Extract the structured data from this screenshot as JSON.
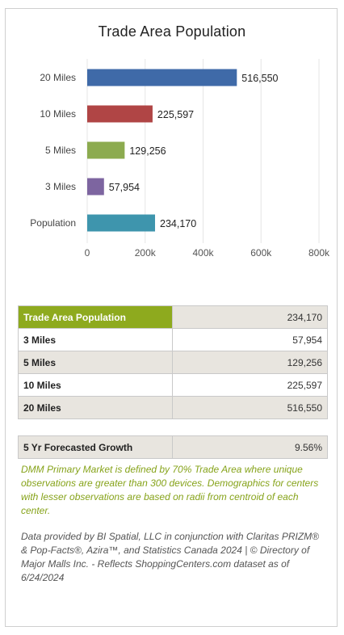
{
  "chart_data": {
    "type": "bar",
    "orientation": "horizontal",
    "title": "Trade Area Population",
    "categories": [
      "20 Miles",
      "10 Miles",
      "5 Miles",
      "3 Miles",
      "Population"
    ],
    "values": [
      516550,
      225597,
      129256,
      57954,
      234170
    ],
    "value_labels": [
      "516,550",
      "225,597",
      "129,256",
      "57,954",
      "234,170"
    ],
    "colors": [
      "#3f6aa8",
      "#b04545",
      "#8cab4f",
      "#7d65a0",
      "#3e95ad"
    ],
    "xlim": [
      0,
      800000
    ],
    "xticks": [
      0,
      200000,
      400000,
      600000,
      800000
    ],
    "xtick_labels": [
      "0",
      "200k",
      "400k",
      "600k",
      "800k"
    ],
    "grid": "vertical"
  },
  "table": {
    "rows": [
      {
        "label": "Trade Area Population",
        "value": "234,170"
      },
      {
        "label": "3 Miles",
        "value": "57,954"
      },
      {
        "label": "5 Miles",
        "value": "129,256"
      },
      {
        "label": "10 Miles",
        "value": "225,597"
      },
      {
        "label": "20 Miles",
        "value": "516,550"
      }
    ]
  },
  "growth": {
    "label": "5 Yr Forecasted Growth",
    "value": "9.56%"
  },
  "notes": {
    "primary_market": "DMM Primary Market is defined by 70% Trade Area where unique observations are greater than 300 devices. Demographics for centers with lesser observations are based on radii from centroid of each center.",
    "source": "Data provided by BI Spatial, LLC in conjunction with Claritas PRIZM® & Pop-Facts®, Azira™, and Statistics Canada 2024 | © Directory of Major Malls Inc. - Reflects ShoppingCenters.com dataset as of 6/24/2024"
  },
  "colors": {
    "accent_green": "#8eaa1e",
    "shade": "#e8e5df",
    "note_green": "#86a31a"
  }
}
